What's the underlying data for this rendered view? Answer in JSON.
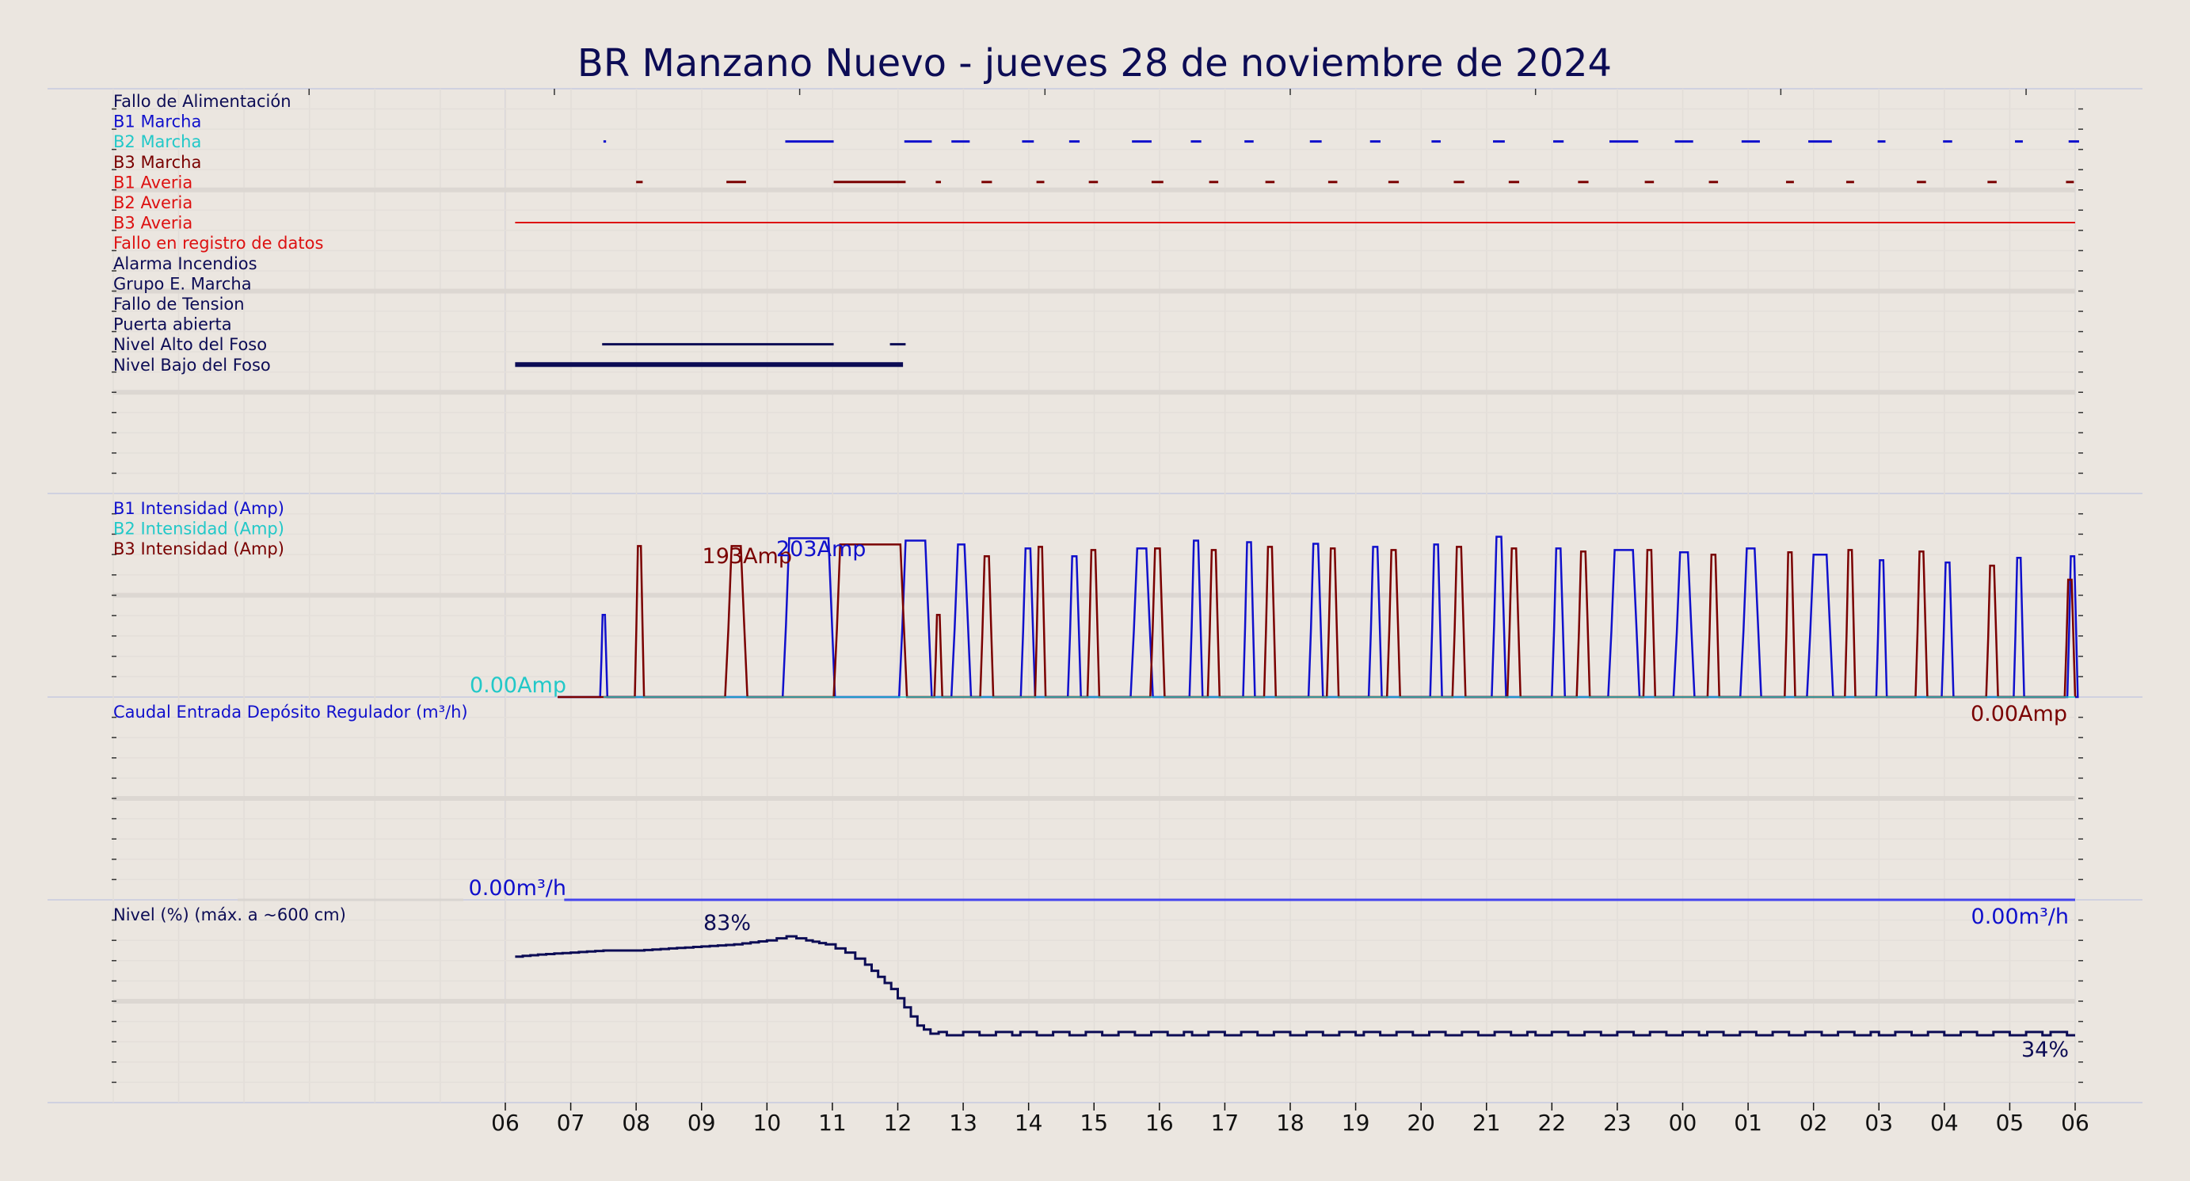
{
  "chart_data": {
    "type": "line",
    "title": "BR Manzano Nuevo   -   jueves 28 de noviembre de 2024",
    "x_axis": {
      "ticks": [
        "06",
        "07",
        "08",
        "09",
        "10",
        "11",
        "12",
        "13",
        "14",
        "15",
        "16",
        "17",
        "18",
        "19",
        "20",
        "21",
        "22",
        "23",
        "00",
        "01",
        "02",
        "03",
        "04",
        "05",
        "06"
      ],
      "range_hours": [
        0,
        24
      ]
    },
    "colors": {
      "background": "#ebe6e0",
      "b1": "#1010cc",
      "b2": "#22c8c8",
      "b3": "#7a0000",
      "red": "#dd1111",
      "navy": "#0c0c55",
      "flow": "#4444ee"
    },
    "signals_panel": {
      "labels": [
        {
          "text": "Fallo de Alimentación",
          "color": "#0c0c55"
        },
        {
          "text": "B1 Marcha",
          "color": "#1010cc"
        },
        {
          "text": "B2 Marcha",
          "color": "#22c8c8"
        },
        {
          "text": "B3 Marcha",
          "color": "#7a0000"
        },
        {
          "text": "B1 Averia",
          "color": "#dd1111"
        },
        {
          "text": "B2 Averia",
          "color": "#dd1111"
        },
        {
          "text": "B3 Averia",
          "color": "#dd1111"
        },
        {
          "text": "Fallo en registro de datos",
          "color": "#dd1111"
        },
        {
          "text": "Alarma Incendios",
          "color": "#0c0c55"
        },
        {
          "text": "Grupo E. Marcha",
          "color": "#0c0c55"
        },
        {
          "text": "Fallo de Tension",
          "color": "#0c0c55"
        },
        {
          "text": "Puerta abierta",
          "color": "#0c0c55"
        },
        {
          "text": "Nivel Alto del Foso",
          "color": "#0c0c55"
        },
        {
          "text": "Nivel Bajo del Foso",
          "color": "#0c0c55"
        }
      ],
      "segments": [
        {
          "row": 1,
          "color": "#1010cc",
          "width": 3,
          "spans": [
            [
              1.5,
              1.54
            ],
            [
              4.28,
              5.02
            ],
            [
              6.1,
              6.52
            ],
            [
              6.82,
              7.1
            ],
            [
              7.9,
              8.08
            ],
            [
              8.62,
              8.78
            ],
            [
              9.58,
              9.88
            ],
            [
              10.48,
              10.64
            ],
            [
              11.3,
              11.44
            ],
            [
              12.3,
              12.48
            ],
            [
              13.22,
              13.38
            ],
            [
              14.16,
              14.3
            ],
            [
              15.1,
              15.28
            ],
            [
              16.02,
              16.18
            ],
            [
              16.88,
              17.32
            ],
            [
              17.88,
              18.16
            ],
            [
              18.9,
              19.18
            ],
            [
              19.92,
              20.28
            ],
            [
              20.98,
              21.1
            ],
            [
              21.98,
              22.12
            ],
            [
              23.08,
              23.2
            ],
            [
              23.9,
              24.06
            ]
          ]
        },
        {
          "row": 3,
          "color": "#7a0000",
          "width": 3,
          "spans": [
            [
              2.0,
              2.1
            ],
            [
              3.38,
              3.68
            ],
            [
              5.02,
              6.12
            ],
            [
              6.58,
              6.66
            ],
            [
              7.28,
              7.44
            ],
            [
              8.12,
              8.24
            ],
            [
              8.92,
              9.06
            ],
            [
              9.88,
              10.06
            ],
            [
              10.76,
              10.9
            ],
            [
              11.62,
              11.76
            ],
            [
              12.58,
              12.72
            ],
            [
              13.5,
              13.66
            ],
            [
              14.5,
              14.66
            ],
            [
              15.34,
              15.5
            ],
            [
              16.4,
              16.56
            ],
            [
              17.42,
              17.56
            ],
            [
              18.4,
              18.54
            ],
            [
              19.58,
              19.7
            ],
            [
              20.5,
              20.62
            ],
            [
              21.58,
              21.72
            ],
            [
              22.66,
              22.8
            ],
            [
              23.86,
              23.98
            ]
          ]
        },
        {
          "row": 5,
          "color": "#dd1111",
          "width": 2,
          "spans": [
            [
              0.15,
              24.0
            ]
          ]
        },
        {
          "row": 11,
          "color": "#0c0c55",
          "width": 3,
          "spans": [
            [
              1.48,
              5.02
            ],
            [
              5.88,
              6.12
            ]
          ]
        },
        {
          "row": 12,
          "color": "#0c0c55",
          "width": 6,
          "spans": [
            [
              0.15,
              6.08
            ]
          ]
        }
      ]
    },
    "current_panel": {
      "labels": [
        {
          "text": "B1 Intensidad (Amp)",
          "color": "#1010cc"
        },
        {
          "text": "B2 Intensidad (Amp)",
          "color": "#22c8c8"
        },
        {
          "text": "B3 Intensidad (Amp)",
          "color": "#7a0000"
        }
      ],
      "unit": "Amp",
      "ymax": 240,
      "series": [
        {
          "name": "B1 Intensidad (Amp)",
          "color": "#1010cc",
          "runs": [
            [
              1.45,
              1.56,
              105
            ],
            [
              4.24,
              5.04,
              203
            ],
            [
              6.02,
              6.52,
              200
            ],
            [
              6.82,
              7.12,
              195
            ],
            [
              7.88,
              8.1,
              190
            ],
            [
              8.6,
              8.8,
              180
            ],
            [
              9.56,
              9.9,
              190
            ],
            [
              10.46,
              10.66,
              200
            ],
            [
              11.28,
              11.46,
              198
            ],
            [
              12.28,
              12.5,
              196
            ],
            [
              13.2,
              13.4,
              192
            ],
            [
              14.14,
              14.32,
              195
            ],
            [
              15.08,
              15.3,
              205
            ],
            [
              16.0,
              16.2,
              190
            ],
            [
              16.86,
              17.34,
              188
            ],
            [
              17.86,
              18.18,
              185
            ],
            [
              18.88,
              19.2,
              190
            ],
            [
              19.9,
              20.3,
              182
            ],
            [
              20.96,
              21.12,
              175
            ],
            [
              21.96,
              22.14,
              172
            ],
            [
              23.06,
              23.22,
              178
            ],
            [
              23.88,
              24.04,
              180
            ]
          ]
        },
        {
          "name": "B3 Intensidad (Amp)",
          "color": "#7a0000",
          "runs": [
            [
              1.98,
              2.12,
              193
            ],
            [
              3.36,
              3.7,
              193
            ],
            [
              5.02,
              6.14,
              195
            ],
            [
              6.56,
              6.68,
              105
            ],
            [
              7.26,
              7.46,
              180
            ],
            [
              8.1,
              8.26,
              192
            ],
            [
              8.9,
              9.08,
              188
            ],
            [
              9.86,
              10.08,
              190
            ],
            [
              10.74,
              10.92,
              188
            ],
            [
              11.6,
              11.78,
              192
            ],
            [
              12.56,
              12.74,
              190
            ],
            [
              13.48,
              13.68,
              188
            ],
            [
              14.48,
              14.68,
              192
            ],
            [
              15.32,
              15.52,
              190
            ],
            [
              16.38,
              16.58,
              186
            ],
            [
              17.4,
              17.58,
              188
            ],
            [
              18.38,
              18.56,
              182
            ],
            [
              19.56,
              19.72,
              185
            ],
            [
              20.48,
              20.64,
              188
            ],
            [
              21.56,
              21.74,
              186
            ],
            [
              22.64,
              22.82,
              168
            ],
            [
              23.84,
              24.0,
              150
            ]
          ]
        },
        {
          "name": "B2 Intensidad (Amp)",
          "color": "#22c8c8",
          "runs": []
        }
      ],
      "annotations": {
        "b3_max": "193Amp",
        "b1_max": "203Amp",
        "b2_last": "0.00Amp",
        "b3_last": "0.00Amp"
      }
    },
    "flow_panel": {
      "label": "Caudal Entrada Depósito Regulador (m³/h)",
      "unit": "m³/h",
      "x_start": 0.9,
      "x_end": 24.0,
      "value": 0.0,
      "annotations": {
        "first": "0.00m³/h",
        "last": "0.00m³/h"
      }
    },
    "level_panel": {
      "label": "Nivel (%) (máx. a ~600 cm)",
      "unit": "%",
      "ymax": 100,
      "color": "#0c0c55",
      "points": [
        [
          0.15,
          72
        ],
        [
          0.5,
          73
        ],
        [
          1.0,
          74
        ],
        [
          1.5,
          75
        ],
        [
          2.0,
          75
        ],
        [
          2.5,
          76
        ],
        [
          3.0,
          77
        ],
        [
          3.5,
          78
        ],
        [
          4.0,
          80
        ],
        [
          4.3,
          82
        ],
        [
          4.6,
          80
        ],
        [
          4.9,
          78
        ],
        [
          5.2,
          74
        ],
        [
          5.5,
          68
        ],
        [
          5.7,
          62
        ],
        [
          5.9,
          56
        ],
        [
          6.1,
          47
        ],
        [
          6.3,
          38
        ],
        [
          6.5,
          34
        ],
        [
          7,
          34
        ],
        [
          8,
          34
        ],
        [
          9,
          34
        ],
        [
          10,
          34
        ],
        [
          11,
          34
        ],
        [
          12,
          34
        ],
        [
          13,
          34
        ],
        [
          14,
          34
        ],
        [
          15,
          34
        ],
        [
          16,
          34
        ],
        [
          17,
          34
        ],
        [
          18,
          34
        ],
        [
          19,
          34
        ],
        [
          20,
          34
        ],
        [
          21,
          34
        ],
        [
          22,
          34
        ],
        [
          23,
          34
        ],
        [
          24,
          34
        ]
      ],
      "annotations": {
        "max": "83%",
        "last": "34%"
      }
    }
  }
}
